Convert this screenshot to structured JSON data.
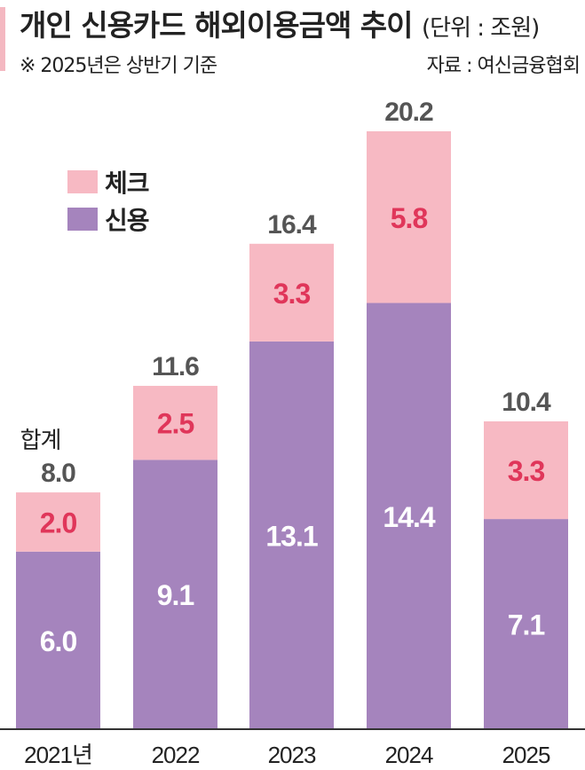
{
  "header": {
    "title": "개인 신용카드 해외이용금액 추이",
    "unit": "(단위 : 조원)",
    "note": "※ 2025년은 상반기 기준",
    "source": "자료 : 여신금융협회"
  },
  "colors": {
    "check": "#f7b9c3",
    "credit": "#a584bd",
    "check_label": "#e0365a",
    "credit_label": "#ffffff",
    "total_label": "#555555",
    "accent": "#f4b8c1"
  },
  "chart_data": {
    "type": "bar",
    "stacked": true,
    "categories": [
      "2021년",
      "2022",
      "2023",
      "2024",
      "2025"
    ],
    "series": [
      {
        "name": "신용",
        "values": [
          6.0,
          9.1,
          13.1,
          14.4,
          7.1
        ]
      },
      {
        "name": "체크",
        "values": [
          2.0,
          2.5,
          3.3,
          5.8,
          3.3
        ]
      }
    ],
    "totals": [
      8.0,
      11.6,
      16.4,
      20.2,
      10.4
    ],
    "total_prefix_label": "합계",
    "legend": [
      {
        "name": "체크",
        "color": "#f7b9c3"
      },
      {
        "name": "신용",
        "color": "#a584bd"
      }
    ],
    "legend_position": "top-left",
    "title": "개인 신용카드 해외이용금액 추이",
    "ylabel": "",
    "xlabel": "",
    "ylim": [
      0,
      20.2
    ],
    "grid": false
  }
}
